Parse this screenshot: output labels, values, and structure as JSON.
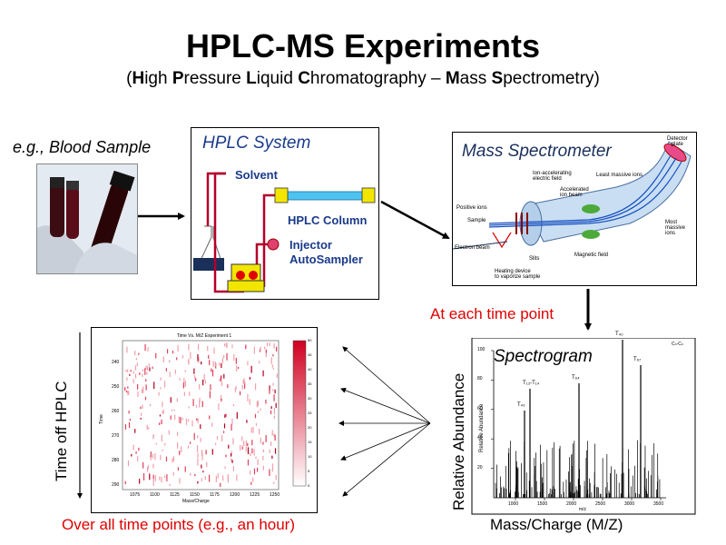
{
  "title": "HPLC-MS Experiments",
  "subtitle": {
    "parts": [
      {
        "t": "(",
        "b": false
      },
      {
        "t": "H",
        "b": true
      },
      {
        "t": "igh ",
        "b": false
      },
      {
        "t": "P",
        "b": true
      },
      {
        "t": "ressure ",
        "b": false
      },
      {
        "t": "L",
        "b": true
      },
      {
        "t": "iquid ",
        "b": false
      },
      {
        "t": "C",
        "b": true
      },
      {
        "t": "hromatography – ",
        "b": false
      },
      {
        "t": "M",
        "b": true
      },
      {
        "t": "ass ",
        "b": false
      },
      {
        "t": "S",
        "b": true
      },
      {
        "t": "pectrometry)",
        "b": false
      }
    ]
  },
  "sample": {
    "label": "e.g., Blood Sample"
  },
  "hplc": {
    "title": "HPLC System",
    "solvent": "Solvent",
    "column": "HPLC Column",
    "injector_line1": "Injector",
    "injector_line2": "AutoSampler"
  },
  "ms": {
    "title": "Mass Spectrometer",
    "labels": {
      "detector1": "Detector",
      "detector2": "plate",
      "ionacc1": "Ion-accelerating",
      "ionacc2": "electric field",
      "least": "Least massive ions",
      "accel1": "Accelerated",
      "accel2": "ion beam",
      "positive": "Positive ions",
      "sample": "Sample",
      "electron": "Electron beam",
      "slits": "Slits",
      "magnetic": "Magnetic field",
      "most1": "Most",
      "most2": "massive",
      "most3": "ions",
      "heating1": "Heating device",
      "heating2": "to vaporize sample"
    }
  },
  "at_each": "At each time point",
  "spectrogram": {
    "title": "Spectrogram",
    "ylabel": "Relative Abundance",
    "xlabel": "Mass/Charge (M/Z)",
    "inner_ylabel": "Relative Abundance",
    "inner_xlabel": "m/z",
    "yticks": [
      "100",
      "80",
      "60",
      "40",
      "20"
    ],
    "xticks": [
      "1000",
      "1500",
      "2000",
      "2500",
      "3000",
      "3500"
    ],
    "peak_labels": [
      "T₄₃",
      "T₁₃-T₁₄",
      "T₆₄",
      "T₄₀",
      "T₆₇"
    ],
    "corner_note": "Cₙ-Cₙ"
  },
  "heatmap": {
    "title": "Time Vs. M/Z Experiment 1",
    "ylabel": "Time",
    "xlabel": "Mass/Charge",
    "yticks": [
      "240",
      "250",
      "260",
      "270",
      "280",
      "290"
    ],
    "xticks": [
      "1075",
      "1100",
      "1125",
      "1150",
      "1175",
      "1200",
      "1225",
      "1250"
    ],
    "cbar_ticks": [
      "50",
      "45",
      "40",
      "35",
      "30",
      "25",
      "20",
      "15",
      "10",
      "5",
      "0"
    ],
    "side_label": "Time off HPLC"
  },
  "over_all": "Over all time points (e.g., an hour)",
  "colors": {
    "red_text": "#e00000",
    "column_blue": "#4fc3f0",
    "fitting_yellow": "#f2e600",
    "pipe_red": "#b3002a",
    "ms_blue": "#7fb4e0"
  }
}
